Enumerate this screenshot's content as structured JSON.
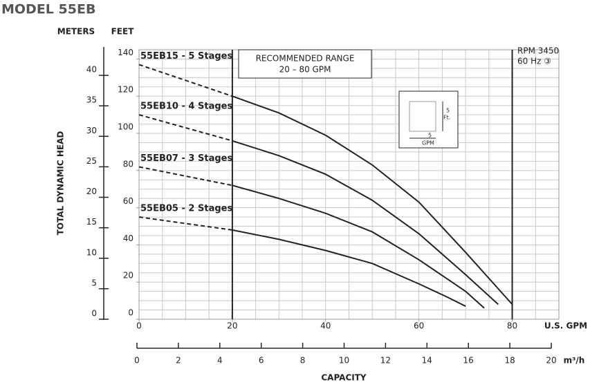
{
  "chart_data": {
    "type": "line",
    "title": "MODEL 55EB",
    "y_label": "TOTAL DYNAMIC HEAD",
    "y_unit": "FEET",
    "y2_unit": "METERS",
    "x_unit": "U.S. GPM",
    "x2_unit": "m³/h",
    "x_label": "CAPACITY",
    "xlim": [
      0,
      90
    ],
    "xticks": [
      0,
      20,
      40,
      60,
      80
    ],
    "x2lim": [
      0,
      20
    ],
    "x2ticks": [
      0,
      2,
      4,
      6,
      8,
      10,
      12,
      14,
      16,
      18,
      20
    ],
    "ylim": [
      0,
      145
    ],
    "yticks": [
      0,
      20,
      40,
      60,
      80,
      100,
      120,
      140
    ],
    "y2lim": [
      0,
      44.2
    ],
    "y2ticks": [
      0,
      5,
      10,
      15,
      20,
      25,
      30,
      35,
      40
    ],
    "grid_x_step": 5,
    "grid_y_step": 5,
    "grid_y_unit": "Ft.",
    "grid_x_unit": "GPM",
    "recommended_range": [
      20,
      80
    ],
    "recommended_title": "RECOMMENDED RANGE",
    "recommended_label": "20 – 80 GPM",
    "rpm": "RPM 3450",
    "hz": "60 Hz ③",
    "series": [
      {
        "name": "55EB15 - 5 Stages",
        "color": "#222222",
        "x": [
          0,
          20,
          30,
          40,
          50,
          60,
          70,
          80
        ],
        "values": [
          137,
          120,
          111,
          99,
          83,
          63,
          36,
          8
        ]
      },
      {
        "name": "55EB10 - 4 Stages",
        "color": "#222222",
        "x": [
          0,
          20,
          30,
          40,
          50,
          60,
          70,
          77
        ],
        "values": [
          110,
          96,
          88,
          78,
          64,
          46,
          24,
          8
        ]
      },
      {
        "name": "55EB07 - 3 Stages",
        "color": "#222222",
        "x": [
          0,
          20,
          30,
          40,
          50,
          60,
          70,
          74
        ],
        "values": [
          82,
          72,
          65,
          57,
          47,
          32,
          15,
          6
        ]
      },
      {
        "name": "55EB05 - 2 Stages",
        "color": "#222222",
        "x": [
          0,
          20,
          30,
          40,
          50,
          60,
          66,
          70
        ],
        "values": [
          55,
          48,
          43,
          37,
          30,
          19,
          12,
          7
        ]
      }
    ]
  }
}
